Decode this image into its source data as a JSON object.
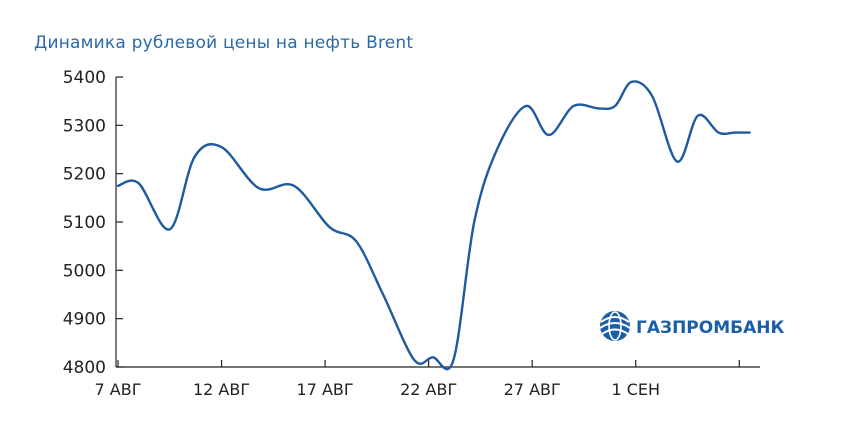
{
  "chart_data": {
    "type": "line",
    "title": "Динамика рублевой цены на нефть Brent",
    "xlabel": "",
    "ylabel": "",
    "ylim": [
      4800,
      5400
    ],
    "yticks": [
      4800,
      4900,
      5000,
      5100,
      5200,
      5300,
      5400
    ],
    "xtick_labels": [
      "7 АВГ",
      "12 АВГ",
      "17 АВГ",
      "22 АВГ",
      "27 АВГ",
      "1 СЕН"
    ],
    "grid": false,
    "series": [
      {
        "color": "#1f5aa0",
        "points": [
          {
            "x": 0.0,
            "y": 5175
          },
          {
            "x": 1.0,
            "y": 5180
          },
          {
            "x": 2.5,
            "y": 5085
          },
          {
            "x": 3.7,
            "y": 5235
          },
          {
            "x": 5.0,
            "y": 5255
          },
          {
            "x": 6.8,
            "y": 5170
          },
          {
            "x": 8.5,
            "y": 5175
          },
          {
            "x": 10.2,
            "y": 5090
          },
          {
            "x": 11.5,
            "y": 5060
          },
          {
            "x": 12.8,
            "y": 4950
          },
          {
            "x": 14.3,
            "y": 4815
          },
          {
            "x": 15.2,
            "y": 4820
          },
          {
            "x": 16.2,
            "y": 4815
          },
          {
            "x": 17.2,
            "y": 5100
          },
          {
            "x": 18.3,
            "y": 5250
          },
          {
            "x": 19.7,
            "y": 5340
          },
          {
            "x": 20.8,
            "y": 5280
          },
          {
            "x": 22.0,
            "y": 5340
          },
          {
            "x": 23.2,
            "y": 5335
          },
          {
            "x": 24.0,
            "y": 5340
          },
          {
            "x": 24.8,
            "y": 5390
          },
          {
            "x": 25.8,
            "y": 5360
          },
          {
            "x": 27.0,
            "y": 5225
          },
          {
            "x": 28.0,
            "y": 5320
          },
          {
            "x": 29.0,
            "y": 5285
          },
          {
            "x": 29.8,
            "y": 5285
          },
          {
            "x": 30.5,
            "y": 5285
          }
        ]
      }
    ]
  },
  "brand": {
    "name": "ГАЗПРОМБАНК",
    "logo_icon": "globe-logo-icon",
    "color": "#1c5fa8"
  }
}
